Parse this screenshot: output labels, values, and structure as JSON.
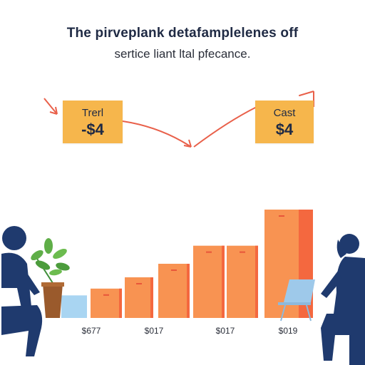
{
  "title": "The pirveplank detafamplelenes off",
  "subtitle": "sertice liant ltal pfecance.",
  "callouts": {
    "left": {
      "label": "Trerl",
      "value": "-$4"
    },
    "right": {
      "label": "Cast",
      "value": "$4"
    }
  },
  "colors": {
    "bar": "#f89352",
    "bar_dark": "#f4683f",
    "bar_first": "#a9d5f2",
    "bar_marker": "#e8563a",
    "arrow": "#e9604a",
    "callout": "#f6b64c",
    "person": "#1f3a6e",
    "title": "#1f2a44"
  },
  "icons": [
    "person-silhouette-left",
    "potted-plant",
    "laptop",
    "person-silhouette-right"
  ],
  "chart_data": {
    "type": "bar",
    "title": "The pirveplank detafamplelenes off",
    "subtitle": "sertice liant ltal pfecance.",
    "xlabel": "",
    "ylabel": "",
    "grid": false,
    "ylim": [
      0,
      6
    ],
    "values": [
      1.0,
      1.3,
      1.8,
      2.4,
      3.2,
      3.2,
      4.8
    ],
    "tick_labels": [
      "$677",
      "$017",
      "$017",
      "$019"
    ]
  }
}
